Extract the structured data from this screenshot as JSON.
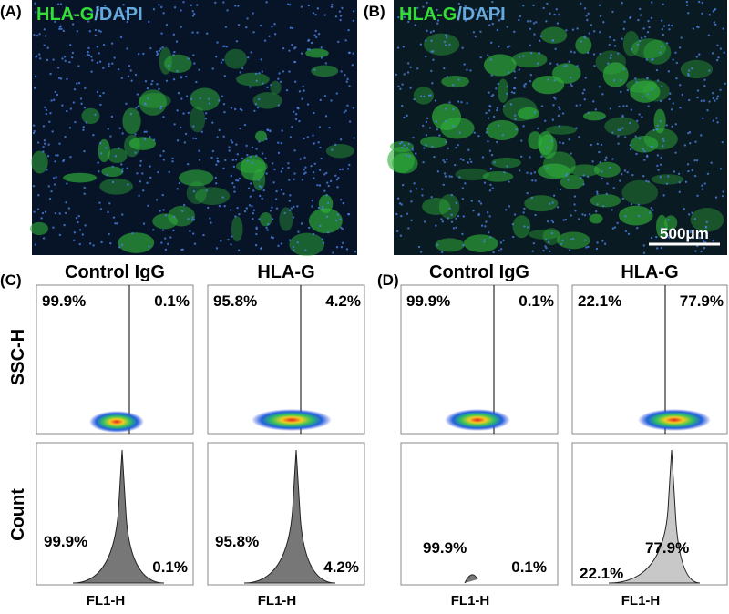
{
  "panels": [
    {
      "label": "(A)",
      "stain": [
        "HLA-G",
        "/DAPI"
      ]
    },
    {
      "label": "(B)",
      "stain": [
        "HLA-G",
        "/DAPI"
      ],
      "scale_bar": "500μm"
    }
  ],
  "flow": [
    {
      "label": "(C)",
      "plots": [
        {
          "title": "Control IgG",
          "scatter": [
            "99.9%",
            "0.1%"
          ],
          "histogram": [
            "99.9%",
            "0.1%"
          ],
          "x_label": "FL1-H"
        },
        {
          "title": "HLA-G",
          "scatter": [
            "95.8%",
            "4.2%"
          ],
          "histogram": [
            "95.8%",
            "4.2%"
          ],
          "x_label": "FL1-H"
        }
      ]
    },
    {
      "label": "(D)",
      "plots": [
        {
          "title": "Control IgG",
          "scatter": [
            "99.9%",
            "0.1%"
          ],
          "histogram": [
            "99.9%",
            "0.1%"
          ],
          "x_label": "FL1-H"
        },
        {
          "title": "HLA-G",
          "scatter": [
            "22.1%",
            "77.9%"
          ],
          "histogram": [
            "22.1%",
            "77.9%"
          ],
          "x_label": "FL1-H"
        }
      ]
    }
  ],
  "y_labels": {
    "scatter": "SSC-H",
    "histogram": "Count"
  }
}
